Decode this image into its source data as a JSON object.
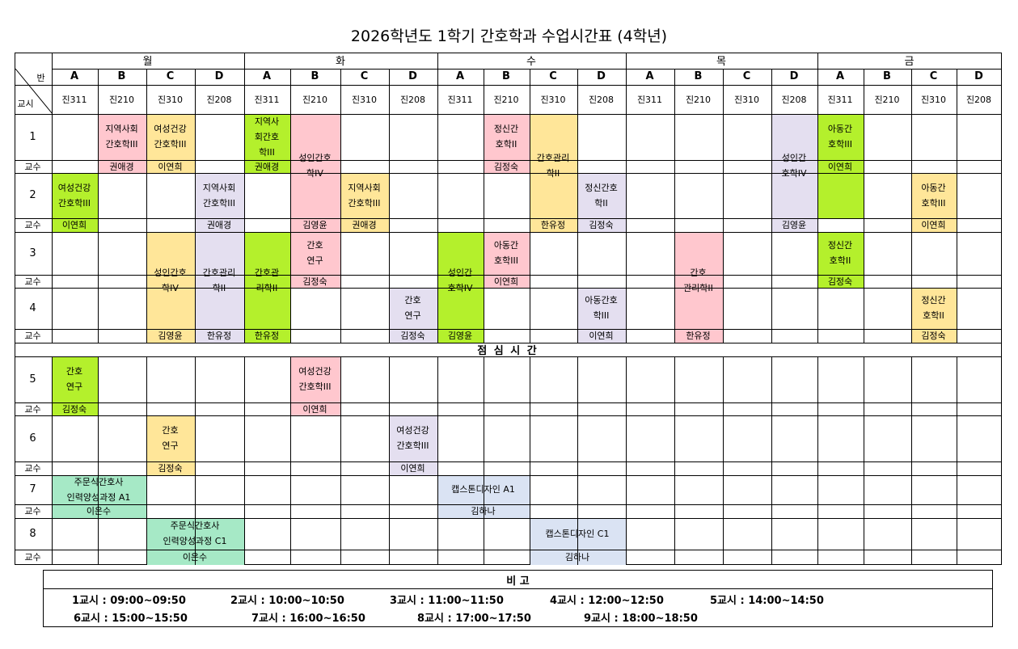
{
  "title": "2026학년도 1학기 간호학과 수업시간표 (4학년)",
  "corner": {
    "top_label": "반",
    "bottom_label": "교시"
  },
  "days": [
    "월",
    "화",
    "수",
    "목",
    "금"
  ],
  "col_letters": [
    "A",
    "B",
    "C",
    "D"
  ],
  "rooms": [
    "진311",
    "진210",
    "진310",
    "진208"
  ],
  "periods": [
    "1",
    "2",
    "3",
    "4",
    "5",
    "6",
    "7",
    "8"
  ],
  "faculty_label": "교수",
  "lunch_label": "점 심 시 간",
  "colors": {
    "pink": "#ffc7ce",
    "yellow": "#ffe699",
    "lavender": "#e4dff0",
    "green": "#b4f02c",
    "teal": "#a6e9c6",
    "blue": "#dae3f3"
  },
  "courses": [
    {
      "text": "지역사회\n간호학III",
      "prof": "권애경",
      "color": "pink"
    },
    {
      "text": "여성건강\n간호학III",
      "prof": "이연희",
      "color": "yellow"
    },
    {
      "text": "지역사\n회간호\n학III",
      "prof": "권애경",
      "color": "green"
    },
    {
      "text": "성인간호\n학IV",
      "prof": "김영윤",
      "color": "pink"
    },
    {
      "text": "정신간\n호학II",
      "prof": "김정숙",
      "color": "pink"
    },
    {
      "text": "간호관리\n학II",
      "prof": "한유정",
      "color": "yellow"
    },
    {
      "text": "성인간\n호학IV",
      "prof": "김영윤",
      "color": "lavender"
    },
    {
      "text": "아동간\n호학III",
      "prof": "이연희",
      "color": "green"
    },
    {
      "text": "여성건강\n간호학III",
      "prof": "이연희",
      "color": "green"
    },
    {
      "text": "지역사회\n간호학III",
      "prof": "권애경",
      "color": "lavender"
    },
    {
      "text": "지역사회\n간호학III",
      "prof": "권애경",
      "color": "yellow"
    },
    {
      "text": "정신간호\n학II",
      "prof": "김정숙",
      "color": "lavender"
    },
    {
      "text": "아동간\n호학III",
      "prof": "이연희",
      "color": "yellow"
    },
    {
      "text": "성인간호\n학IV",
      "prof": "김영윤",
      "color": "yellow"
    },
    {
      "text": "간호관리\n학II",
      "prof": "한유정",
      "color": "lavender"
    },
    {
      "text": "간호관\n리학II",
      "prof": "한유정",
      "color": "green"
    },
    {
      "text": "간호\n연구",
      "prof": "김정숙",
      "color": "pink"
    },
    {
      "text": "성인간\n호학IV",
      "prof": "김영윤",
      "color": "green"
    },
    {
      "text": "아동간\n호학III",
      "prof": "이연희",
      "color": "pink"
    },
    {
      "text": "간호\n관리학II",
      "prof": "한유정",
      "color": "pink"
    },
    {
      "text": "정신간\n호학II",
      "prof": "김정숙",
      "color": "green"
    },
    {
      "text": "간호\n연구",
      "prof": "김정숙",
      "color": "lavender"
    },
    {
      "text": "아동간호\n학III",
      "prof": "이연희",
      "color": "lavender"
    },
    {
      "text": "정신간\n호학II",
      "prof": "김정숙",
      "color": "yellow"
    },
    {
      "text": "간호\n연구",
      "prof": "김정숙",
      "color": "green"
    },
    {
      "text": "여성건강\n간호학III",
      "prof": "이연희",
      "color": "pink"
    },
    {
      "text": "간호\n연구",
      "prof": "김정숙",
      "color": "yellow"
    },
    {
      "text": "여성건강\n간호학III",
      "prof": "이연희",
      "color": "lavender"
    },
    {
      "text": "주문식간호사\n인력양성과정 A1",
      "prof": "이은수",
      "color": "teal"
    },
    {
      "text": "캡스톤디자인 A1",
      "prof": "김하나",
      "color": "blue"
    },
    {
      "text": "주문식간호사\n인력양성과정 C1",
      "prof": "이은수",
      "color": "teal"
    },
    {
      "text": "캡스톤디자인 C1",
      "prof": "김하나",
      "color": "blue"
    }
  ],
  "note": {
    "title": "비                          고",
    "items": [
      "1교시 : 09:00~09:50",
      "2교시 : 10:00~10:50",
      "3교시 : 11:00~11:50",
      "4교시 : 12:00~12:50",
      "5교시 : 14:00~14:50",
      "6교시 : 15:00~15:50",
      "7교시 : 16:00~16:50",
      "8교시 : 17:00~17:50",
      "9교시 : 18:00~18:50"
    ]
  }
}
